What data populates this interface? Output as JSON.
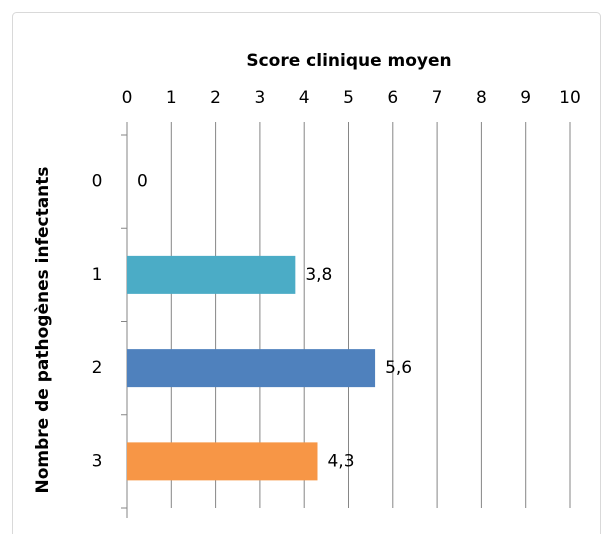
{
  "chart_data": {
    "type": "bar",
    "orientation": "horizontal",
    "title": "Score clinique moyen",
    "y_label": "Nombre de pathogènes infectants",
    "categories": [
      "0",
      "1",
      "2",
      "3"
    ],
    "values": [
      0,
      3.8,
      5.6,
      4.3
    ],
    "value_labels": [
      "0",
      "3,8",
      "5,6",
      "4,3"
    ],
    "colors": [
      "#4bacc6",
      "#4bacc6",
      "#4f81bd",
      "#f79646"
    ],
    "xlim": [
      0,
      10
    ],
    "xticks": [
      0,
      1,
      2,
      3,
      4,
      5,
      6,
      7,
      8,
      9,
      10
    ],
    "grid": true
  }
}
